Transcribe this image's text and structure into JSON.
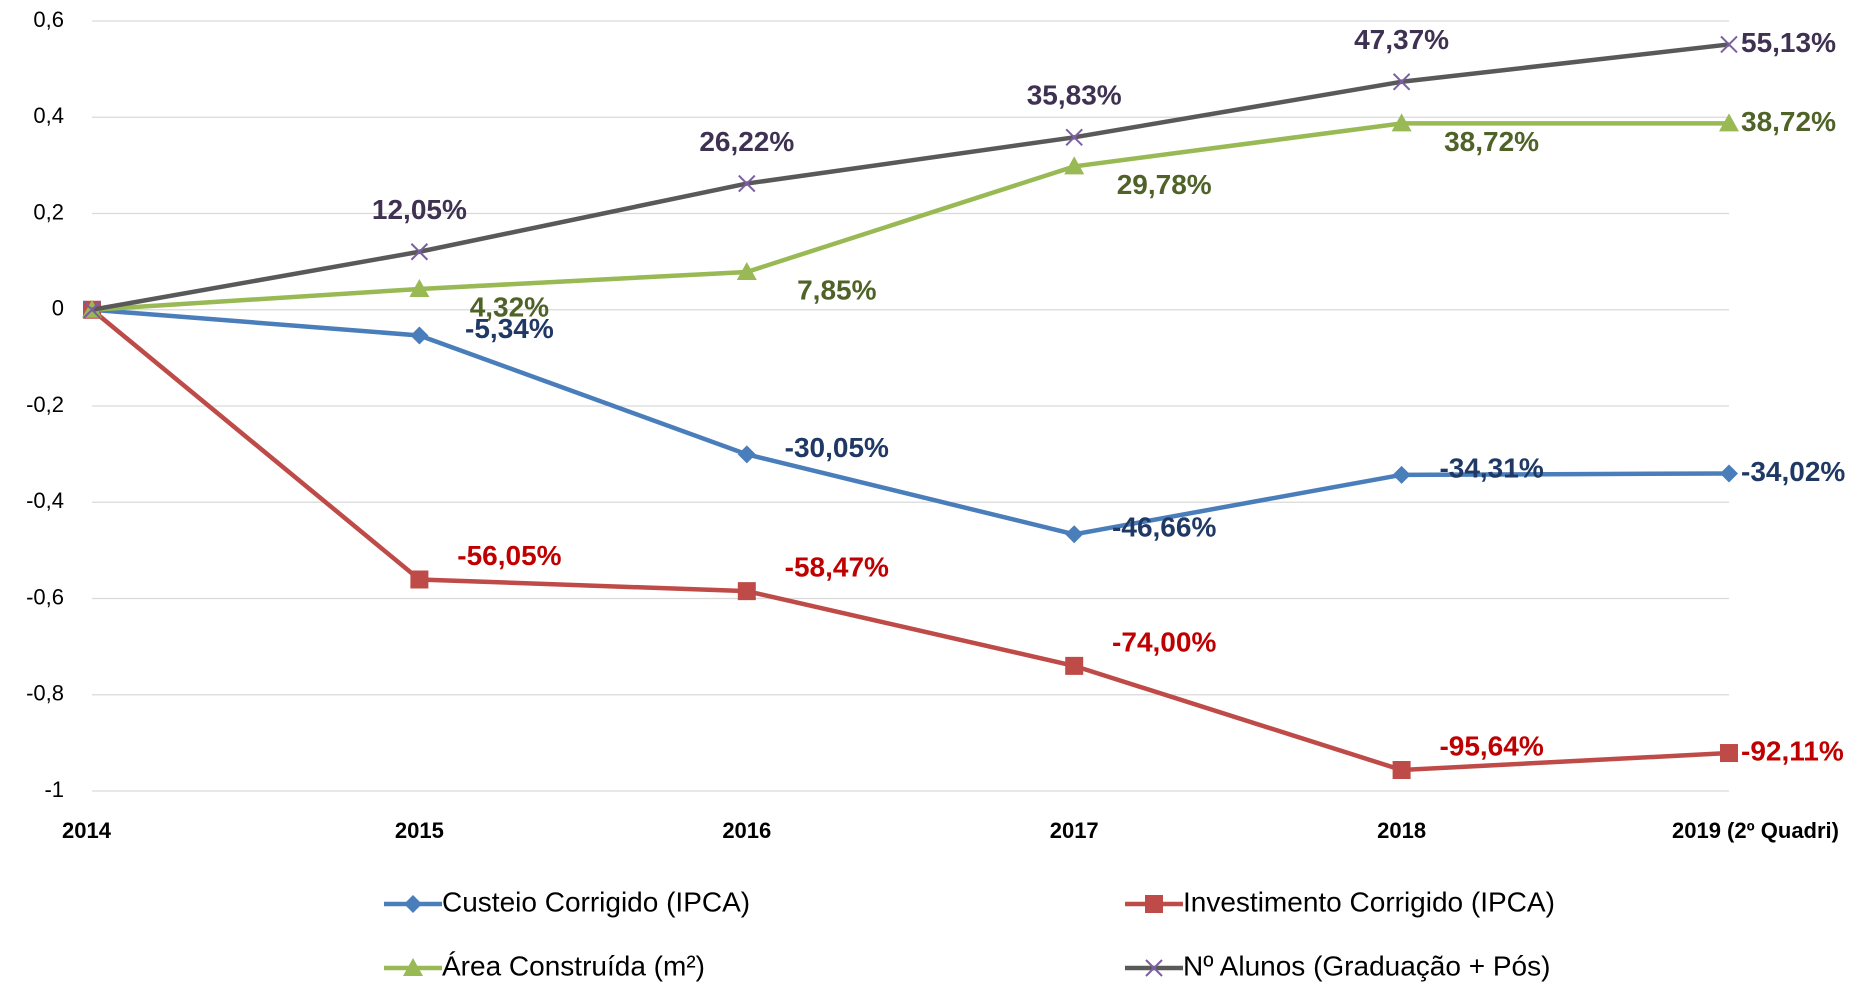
{
  "chart_data": {
    "type": "line",
    "categories": [
      "2014",
      "2015",
      "2016",
      "2017",
      "2018",
      "2019 (2º Quadri)"
    ],
    "series": [
      {
        "name": "Custeio Corrigido (IPCA)",
        "color": "#4a7ebb",
        "label_color": "#1f3864",
        "marker": "diamond",
        "values": [
          0,
          -0.0534,
          -0.3005,
          -0.4666,
          -0.3431,
          -0.3402
        ],
        "value_labels": [
          null,
          "-5,34%",
          "-30,05%",
          "-46,66%",
          "-34,31%",
          "-34,02%"
        ]
      },
      {
        "name": "Investimento Corrigido (IPCA)",
        "color": "#be4b48",
        "label_color": "#c00000",
        "marker": "square",
        "values": [
          0,
          -0.5605,
          -0.5847,
          -0.74,
          -0.9564,
          -0.9211
        ],
        "value_labels": [
          null,
          "-56,05%",
          "-58,47%",
          "-74,00%",
          "-95,64%",
          "-92,11%"
        ]
      },
      {
        "name": "Área Construída (m²)",
        "color": "#98b954",
        "label_color": "#4f6228",
        "marker": "triangle",
        "values": [
          0,
          0.0432,
          0.0785,
          0.2978,
          0.3872,
          0.3872
        ],
        "value_labels": [
          null,
          "4,32%",
          "7,85%",
          "29,78%",
          "38,72%",
          "38,72%"
        ]
      },
      {
        "name": "Nº Alunos (Graduação + Pós)",
        "color": "#595959",
        "marker_color": "#7b5fa0",
        "label_color": "#3f3151",
        "marker": "x",
        "values": [
          0,
          0.1205,
          0.2622,
          0.3583,
          0.4737,
          0.5513
        ],
        "value_labels": [
          null,
          "12,05%",
          "26,22%",
          "35,83%",
          "47,37%",
          "55,13%"
        ]
      }
    ],
    "ylim": [
      -1,
      0.6
    ],
    "yticks": [
      {
        "value": 0.6,
        "label": "0,6"
      },
      {
        "value": 0.4,
        "label": "0,4"
      },
      {
        "value": 0.2,
        "label": "0,2"
      },
      0,
      {
        "value": -0.2,
        "label": "-0,2"
      },
      {
        "value": -0.4,
        "label": "-0,4"
      },
      {
        "value": -0.6,
        "label": "-0,6"
      },
      {
        "value": -0.8,
        "label": "-0,8"
      },
      -1
    ],
    "grid": true,
    "legend": "bottom"
  }
}
